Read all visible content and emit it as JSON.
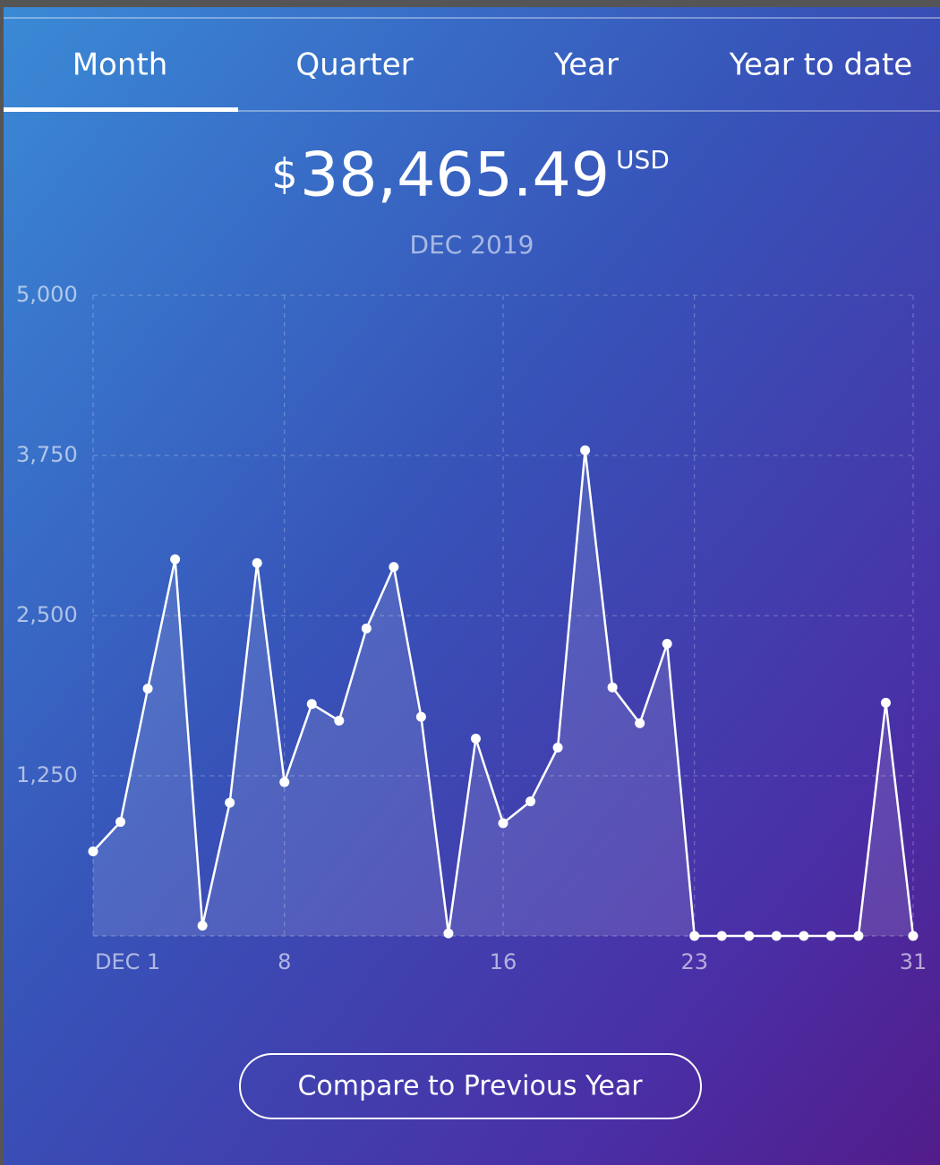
{
  "tabs": [
    "Month",
    "Quarter",
    "Year",
    "Year to date"
  ],
  "summary": {
    "currency_symbol": "$",
    "amount": "38,465.49",
    "currency": "USD",
    "period": "DEC 2019"
  },
  "button": "Compare to Previous Year",
  "chart_data": {
    "type": "line",
    "color": "#ffffff",
    "grid": true,
    "x": [
      1,
      2,
      3,
      4,
      5,
      6,
      7,
      8,
      9,
      10,
      11,
      12,
      13,
      14,
      15,
      16,
      17,
      18,
      19,
      20,
      21,
      22,
      23,
      24,
      25,
      26,
      27,
      28,
      29,
      30,
      31
    ],
    "values": [
      660,
      890,
      1930,
      2940,
      80,
      1040,
      2910,
      1200,
      1810,
      1680,
      2400,
      2880,
      1710,
      20,
      1540,
      880,
      1050,
      1470,
      3790,
      1940,
      1660,
      2280,
      0,
      0,
      0,
      0,
      0,
      0,
      0,
      1820,
      0
    ],
    "xlim": [
      1,
      31
    ],
    "xticks": [
      {
        "value": 1,
        "label": "DEC 1"
      },
      8,
      16,
      23,
      31
    ],
    "ylim": [
      0,
      5000
    ],
    "yticks": [
      {
        "value": 1250,
        "label": "1,250"
      },
      {
        "value": 2500,
        "label": "2,500"
      },
      {
        "value": 3750,
        "label": "3,750"
      },
      {
        "value": 5000,
        "label": "5,000"
      }
    ]
  }
}
